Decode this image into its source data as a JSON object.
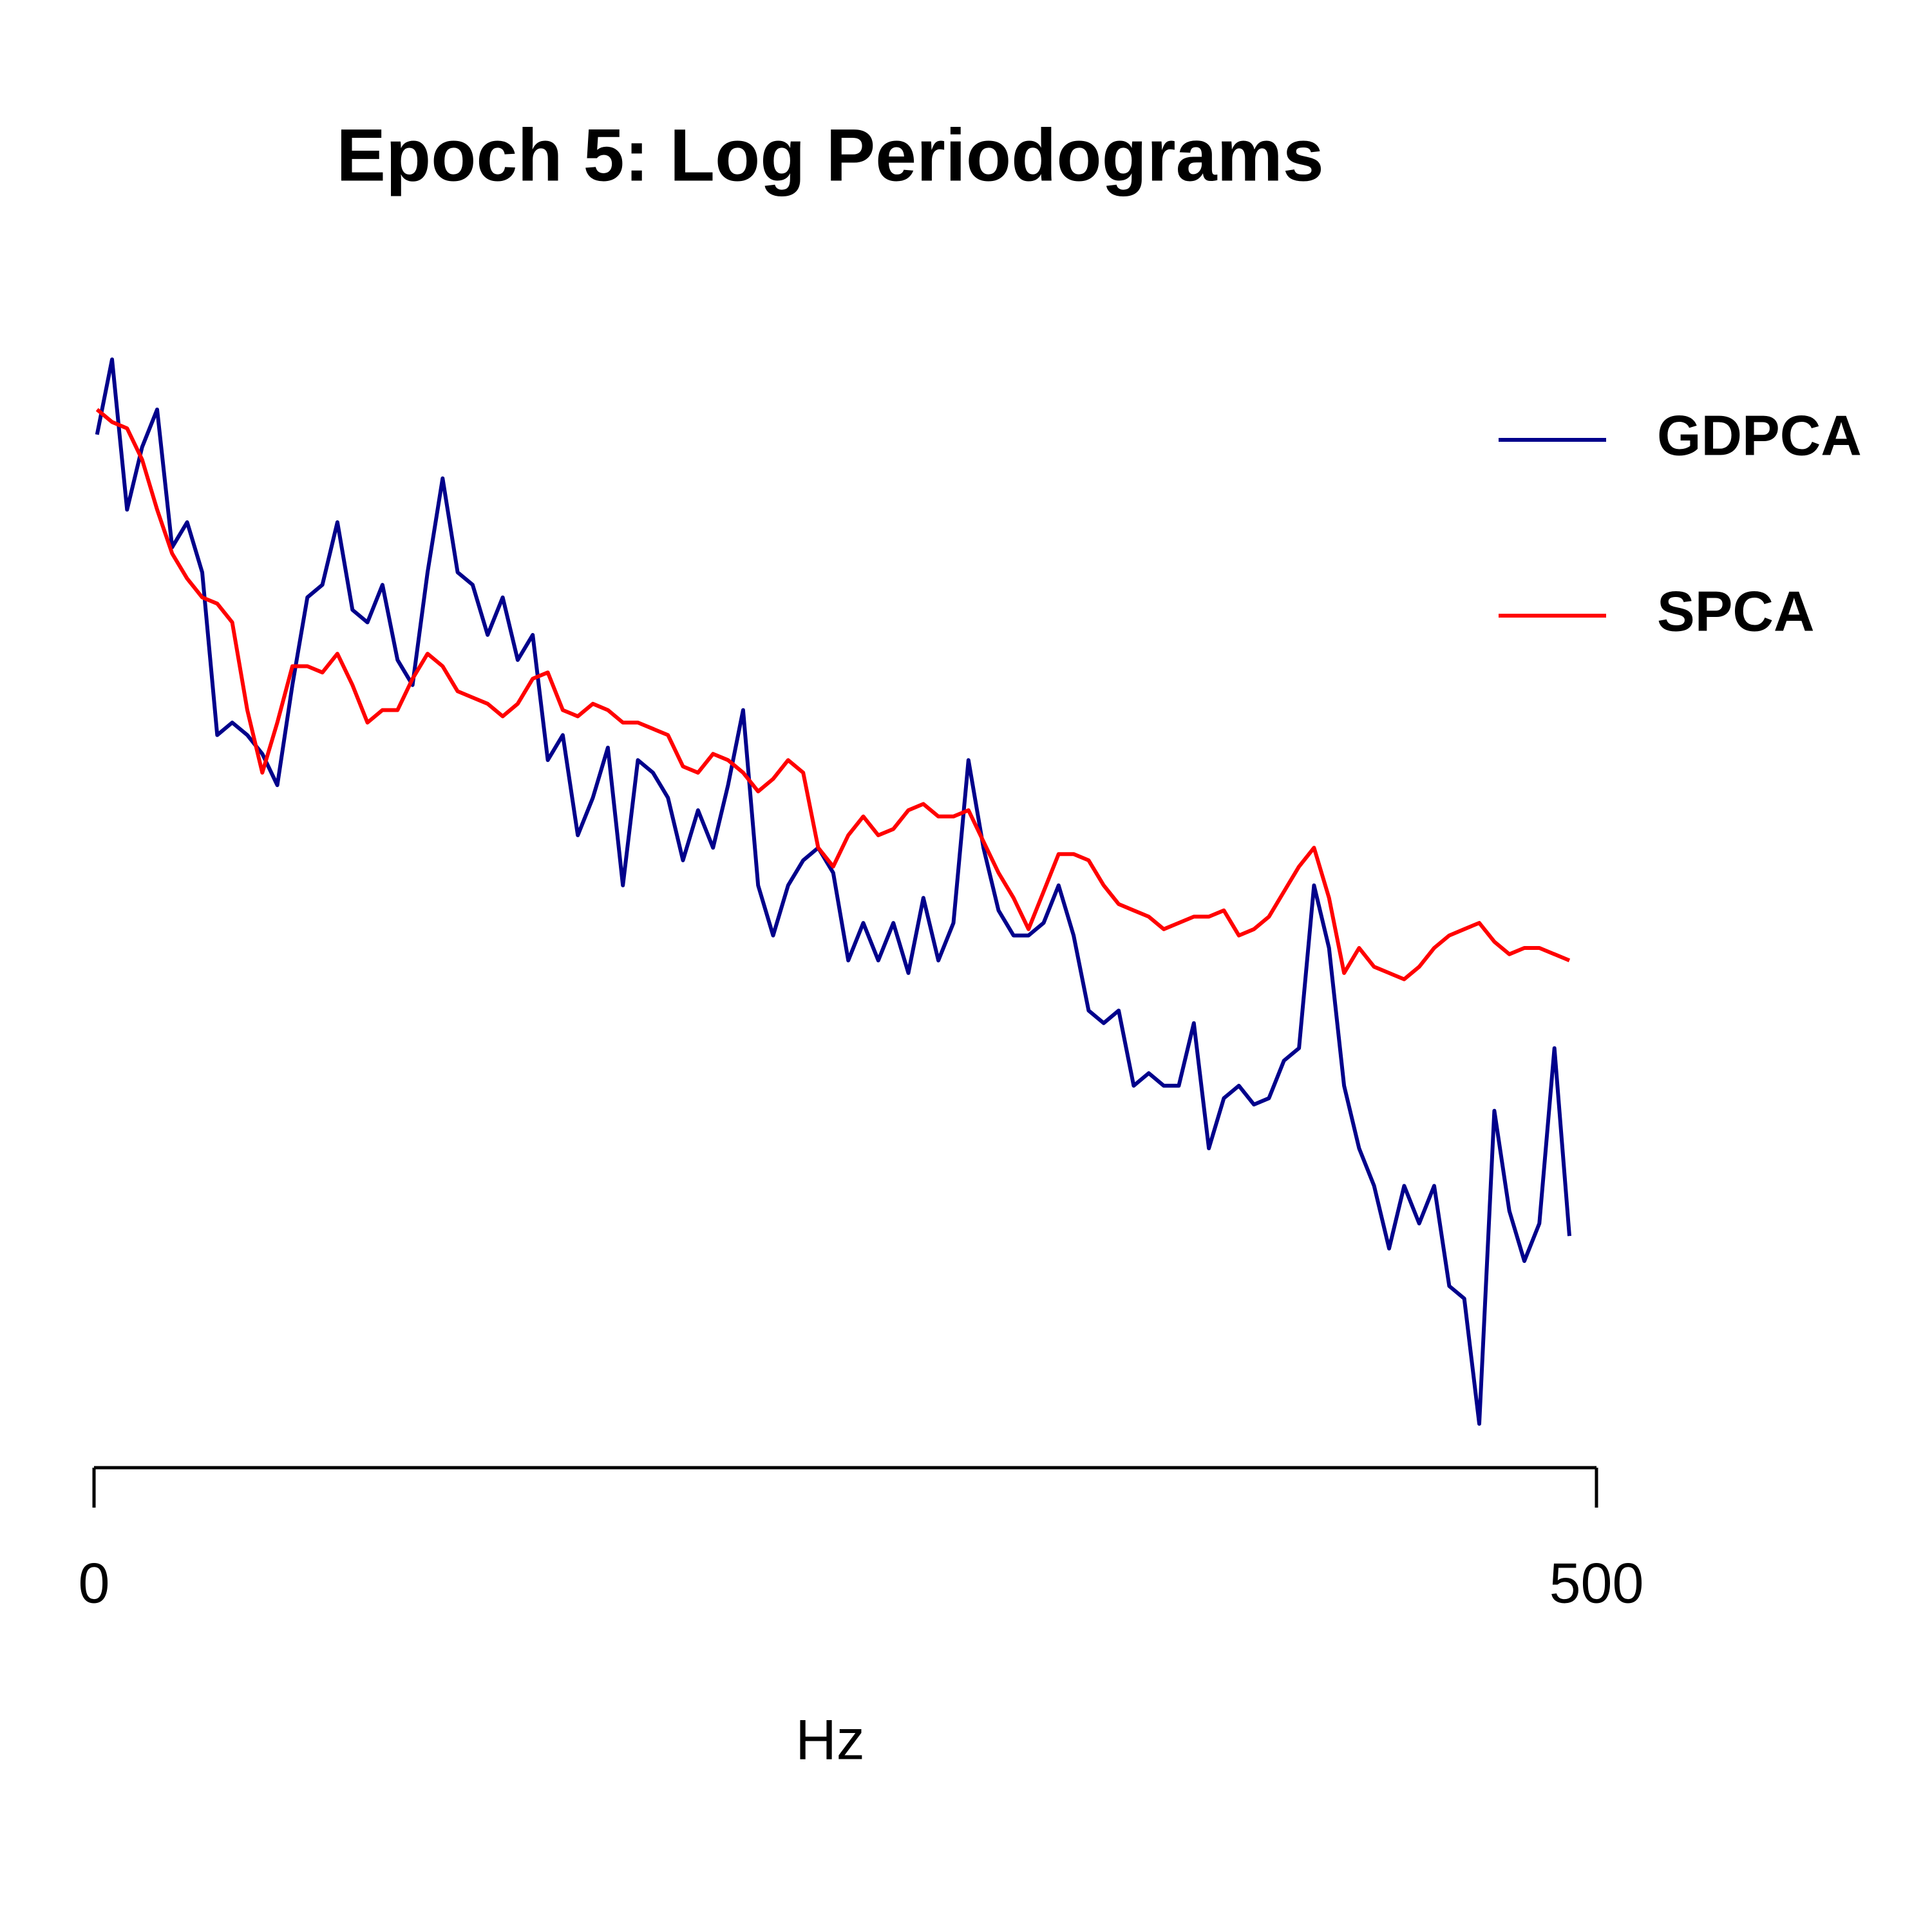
{
  "chart_data": {
    "type": "line",
    "title": "Epoch 5: Log Periodograms",
    "xlabel": "Hz",
    "xlim": [
      0,
      500
    ],
    "xticks": [
      0,
      500
    ],
    "legend": "right",
    "x": [
      1,
      6,
      11,
      16,
      21,
      26,
      31,
      36,
      41,
      46,
      51,
      56,
      61,
      66,
      71,
      76,
      81,
      86,
      91,
      96,
      101,
      106,
      111,
      116,
      121,
      126,
      131,
      136,
      141,
      146,
      151,
      156,
      161,
      166,
      171,
      176,
      181,
      186,
      191,
      196,
      201,
      206,
      211,
      216,
      221,
      226,
      231,
      236,
      241,
      246,
      251,
      256,
      261,
      266,
      271,
      276,
      281,
      286,
      291,
      296,
      301,
      306,
      311,
      316,
      321,
      326,
      331,
      336,
      341,
      346,
      351,
      356,
      361,
      366,
      371,
      376,
      381,
      386,
      391,
      396,
      401,
      406,
      411,
      416,
      421,
      426,
      431,
      436,
      441,
      446,
      451,
      456,
      461,
      466,
      471,
      476,
      481,
      486,
      491
    ],
    "series": [
      {
        "name": "GDPCA",
        "color": "#00008b",
        "values": [
          84,
          90,
          78,
          83,
          86,
          75,
          77,
          73,
          60,
          61,
          60,
          58.5,
          56,
          64,
          71,
          72,
          77,
          70,
          69,
          72,
          66,
          64,
          73,
          80.5,
          73,
          72,
          68,
          71,
          66,
          68,
          58,
          60,
          52,
          55,
          59,
          48,
          58,
          57,
          55,
          50,
          54,
          51,
          56,
          62,
          48,
          44,
          48,
          50,
          51,
          49,
          42,
          45,
          42,
          45,
          41,
          47,
          42,
          45,
          58,
          51,
          46,
          44,
          44,
          45,
          48,
          44,
          38,
          37,
          38,
          32,
          33,
          32,
          32,
          37,
          27,
          31,
          32,
          30.5,
          31,
          34,
          35,
          48,
          43,
          32,
          27,
          24,
          19,
          24,
          21,
          24,
          16,
          15,
          5,
          30,
          22,
          18,
          21,
          35,
          20
        ]
      },
      {
        "name": "SPCA",
        "color": "#ff0000",
        "values": [
          86,
          85,
          84.5,
          82,
          78,
          74.5,
          72.5,
          71,
          70.5,
          69,
          62,
          57,
          61,
          65.5,
          65.5,
          65,
          66.5,
          64,
          61,
          62,
          62,
          64.5,
          66.5,
          65.5,
          63.5,
          63,
          62.5,
          61.5,
          62.5,
          64.5,
          65,
          62,
          61.5,
          62.5,
          62,
          61,
          61,
          60.5,
          60,
          57.5,
          57,
          58.5,
          58,
          57,
          55.5,
          56.5,
          58,
          57,
          51,
          49.5,
          52,
          53.5,
          52,
          52.5,
          54,
          54.5,
          53.5,
          53.5,
          54,
          51.5,
          49,
          47,
          44.5,
          47.5,
          50.5,
          50.5,
          50,
          48,
          46.5,
          46,
          45.5,
          44.5,
          45,
          45.5,
          45.5,
          46,
          44,
          44.5,
          45.5,
          47.5,
          49.5,
          51,
          47,
          41,
          43,
          41.5,
          41,
          40.5,
          41.5,
          43,
          44,
          44.5,
          45,
          43.5,
          42.5,
          43,
          43,
          42.5,
          42
        ]
      }
    ]
  }
}
